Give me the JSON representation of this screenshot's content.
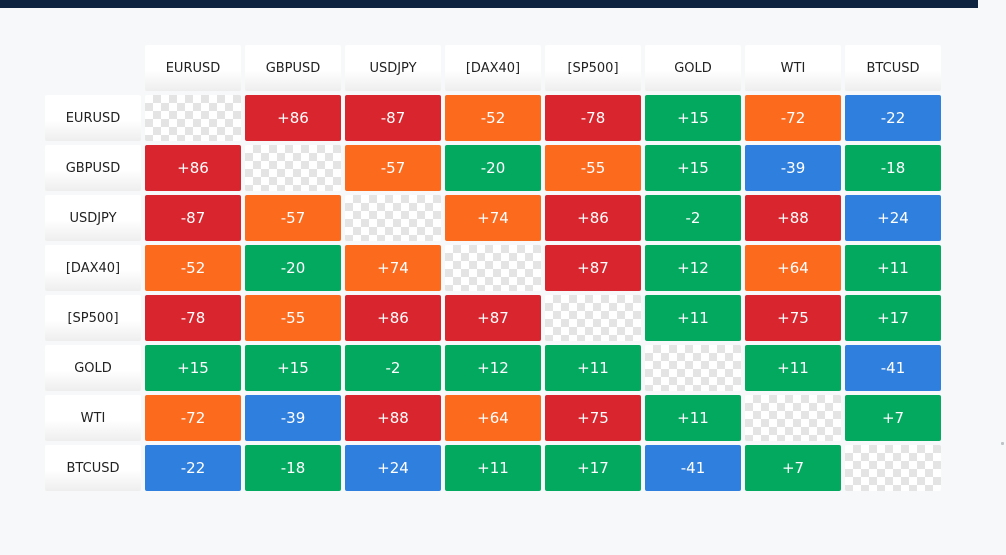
{
  "colors": {
    "top_bar": "#0d2340",
    "red": "#d9262e",
    "orange": "#fc6a1e",
    "green": "#04a960",
    "blue": "#2f7fdf",
    "diagonal": "checkerboard"
  },
  "chart_data": {
    "type": "heatmap",
    "title": "",
    "instruments": [
      "EURUSD",
      "GBPUSD",
      "USDJPY",
      "[DAX40]",
      "[SP500]",
      "GOLD",
      "WTI",
      "BTCUSD"
    ],
    "matrix": [
      [
        null,
        86,
        -87,
        -52,
        -78,
        15,
        -72,
        -22
      ],
      [
        86,
        null,
        -57,
        -20,
        -55,
        15,
        -39,
        -18
      ],
      [
        -87,
        -57,
        null,
        74,
        86,
        -2,
        88,
        24
      ],
      [
        -52,
        -20,
        74,
        null,
        87,
        12,
        64,
        11
      ],
      [
        -78,
        -55,
        86,
        87,
        null,
        11,
        75,
        17
      ],
      [
        15,
        15,
        -2,
        12,
        11,
        null,
        11,
        -41
      ],
      [
        -72,
        -39,
        88,
        64,
        75,
        11,
        null,
        7
      ],
      [
        -22,
        -18,
        24,
        11,
        17,
        -41,
        7,
        null
      ]
    ],
    "display": [
      [
        "",
        "+86",
        "-87",
        "-52",
        "-78",
        "+15",
        "-72",
        "-22"
      ],
      [
        "+86",
        "",
        "-57",
        "-20",
        "-55",
        "+15",
        "-39",
        "-18"
      ],
      [
        "-87",
        "-57",
        "",
        "+74",
        "+86",
        "-2",
        "+88",
        "+24"
      ],
      [
        "-52",
        "-20",
        "+74",
        "",
        "+87",
        "+12",
        "+64",
        "+11"
      ],
      [
        "-78",
        "-55",
        "+86",
        "+87",
        "",
        "+11",
        "+75",
        "+17"
      ],
      [
        "+15",
        "+15",
        "-2",
        "+12",
        "+11",
        "",
        "+11",
        "-41"
      ],
      [
        "-72",
        "-39",
        "+88",
        "+64",
        "+75",
        "+11",
        "",
        "+7"
      ],
      [
        "-22",
        "-18",
        "+24",
        "+11",
        "+17",
        "-41",
        "+7",
        ""
      ]
    ],
    "cell_colors": [
      [
        "diagonal",
        "red",
        "red",
        "orange",
        "red",
        "green",
        "orange",
        "blue"
      ],
      [
        "red",
        "diagonal",
        "orange",
        "green",
        "orange",
        "green",
        "blue",
        "green"
      ],
      [
        "red",
        "orange",
        "diagonal",
        "orange",
        "red",
        "green",
        "red",
        "blue"
      ],
      [
        "orange",
        "green",
        "orange",
        "diagonal",
        "red",
        "green",
        "orange",
        "green"
      ],
      [
        "red",
        "orange",
        "red",
        "red",
        "diagonal",
        "green",
        "red",
        "green"
      ],
      [
        "green",
        "green",
        "green",
        "green",
        "green",
        "diagonal",
        "green",
        "blue"
      ],
      [
        "orange",
        "blue",
        "red",
        "orange",
        "red",
        "green",
        "diagonal",
        "green"
      ],
      [
        "blue",
        "green",
        "blue",
        "green",
        "green",
        "blue",
        "green",
        "diagonal"
      ]
    ]
  }
}
